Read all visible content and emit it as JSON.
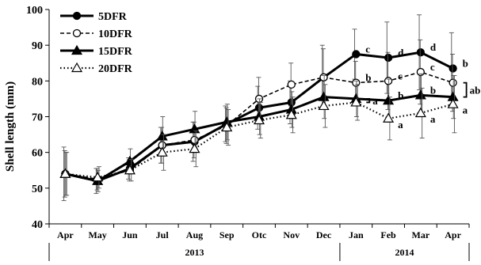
{
  "chart_data": {
    "type": "line",
    "title": "",
    "ylabel": "Shell length (mm)",
    "xlabel": "",
    "ylim": [
      40,
      100
    ],
    "yticks": [
      40,
      50,
      60,
      70,
      80,
      90,
      100
    ],
    "categories": [
      "Apr",
      "May",
      "Jun",
      "Jul",
      "Aug",
      "Sep",
      "Otc",
      "Nov",
      "Dec",
      "Jan",
      "Feb",
      "Mar",
      "Apr"
    ],
    "year_groups": [
      {
        "label": "2013",
        "from": 0,
        "to": 8
      },
      {
        "label": "2014",
        "from": 9,
        "to": 12
      }
    ],
    "legend_position": "top-left",
    "grid": false,
    "series": [
      {
        "name": "5DFR",
        "line": "solid",
        "marker": "circle-filled",
        "values": [
          54,
          52,
          55.5,
          62,
          63,
          68,
          72.5,
          74,
          81,
          87.5,
          86.5,
          88,
          83.5
        ],
        "errors": [
          7.5,
          3.5,
          3.0,
          5.0,
          5.5,
          5.0,
          6.0,
          6.0,
          9.0,
          7.0,
          10.0,
          10.5,
          10.0
        ],
        "letters": [
          "",
          "",
          "",
          "",
          "",
          "",
          "",
          "",
          "",
          "c",
          "d",
          "d",
          "b"
        ]
      },
      {
        "name": "10DFR",
        "line": "dashed",
        "marker": "circle-open",
        "values": [
          54,
          52.5,
          55,
          62,
          63.5,
          67.5,
          75,
          79,
          81,
          79.5,
          80,
          82.5,
          79.5
        ],
        "errors": [
          6.5,
          3.0,
          3.0,
          5.0,
          5.0,
          5.0,
          6.0,
          6.0,
          8.0,
          6.0,
          8.0,
          9.0,
          8.0
        ],
        "letters": [
          "",
          "",
          "",
          "",
          "",
          "",
          "",
          "",
          "",
          "b",
          "c",
          "c",
          ""
        ]
      },
      {
        "name": "15DFR",
        "line": "solid",
        "marker": "triangle-filled",
        "values": [
          54,
          52,
          57.5,
          64.5,
          66.5,
          68.5,
          70,
          72,
          75.5,
          75,
          74.5,
          76,
          75.5
        ],
        "errors": [
          6.0,
          3.0,
          3.5,
          5.5,
          5.0,
          5.0,
          5.0,
          5.0,
          6.0,
          5.0,
          6.0,
          6.0,
          6.0
        ],
        "letters": [
          "",
          "",
          "",
          "",
          "",
          "",
          "",
          "",
          "",
          "",
          "b",
          "b",
          ""
        ]
      },
      {
        "name": "20DFR",
        "line": "dotted",
        "marker": "triangle-open",
        "values": [
          54,
          53,
          55,
          60,
          61,
          67,
          69,
          70.5,
          73,
          74,
          69.5,
          71,
          73.5
        ],
        "errors": [
          6.0,
          3.0,
          3.0,
          5.0,
          5.0,
          5.0,
          5.0,
          5.0,
          6.0,
          5.0,
          6.0,
          7.0,
          8.0
        ],
        "letters": [
          "",
          "",
          "",
          "",
          "",
          "",
          "",
          "",
          "",
          "",
          "a",
          "a",
          "a"
        ]
      }
    ],
    "group_brackets": [
      {
        "label": "a",
        "at": 9,
        "from_series": [
          2,
          3
        ]
      },
      {
        "label": "ab",
        "at": 12,
        "from_series": [
          1,
          2
        ]
      }
    ]
  }
}
